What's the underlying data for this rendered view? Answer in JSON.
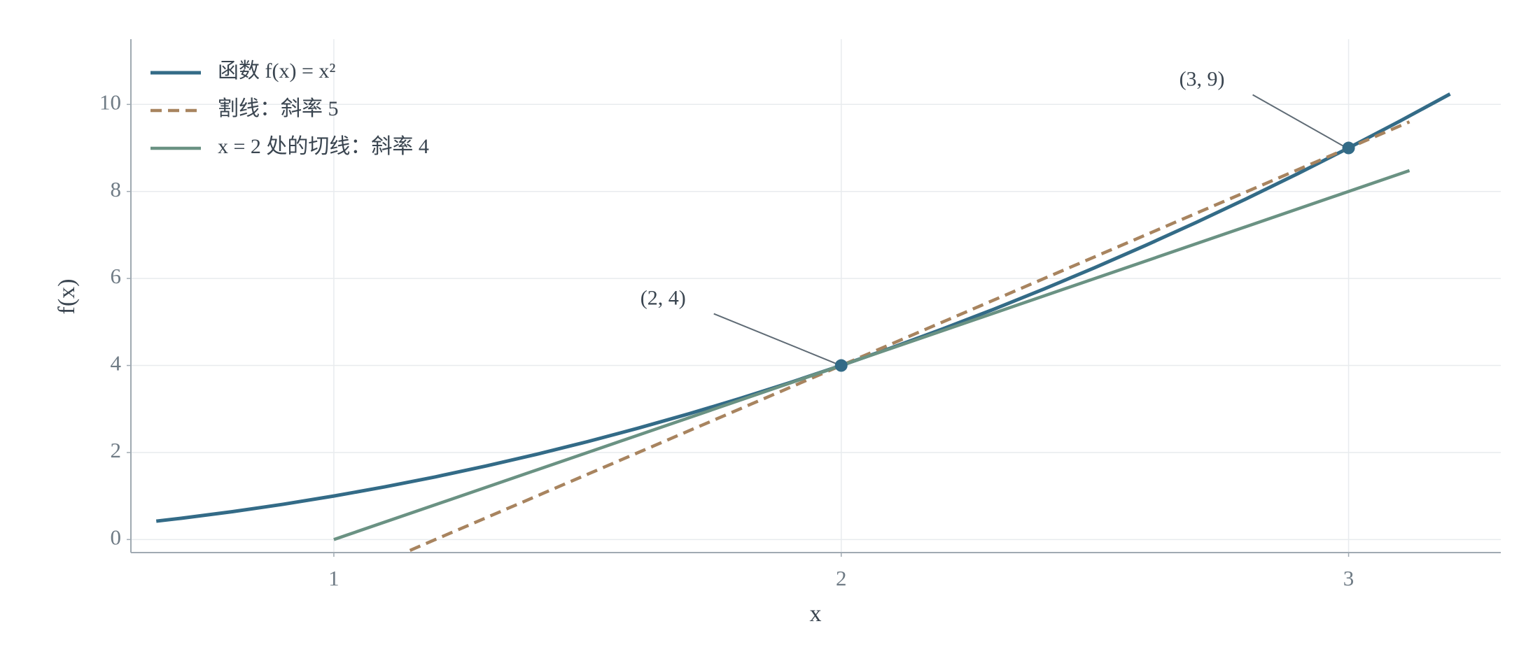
{
  "chart_data": {
    "type": "line",
    "xlabel": "x",
    "ylabel": "f(x)",
    "xlim": [
      0.6,
      3.3
    ],
    "ylim": [
      -0.3,
      11.5
    ],
    "xticks": [
      1,
      2,
      3
    ],
    "yticks": [
      0,
      2,
      4,
      6,
      8,
      10
    ],
    "grid": true,
    "legend": "upper left",
    "series": [
      {
        "name": "函数 f(x) = x²",
        "color": "#336b87",
        "linestyle": "solid",
        "x": [
          0.65,
          0.7,
          0.8,
          0.9,
          1.0,
          1.1,
          1.2,
          1.3,
          1.4,
          1.5,
          1.6,
          1.7,
          1.8,
          1.9,
          2.0,
          2.1,
          2.2,
          2.3,
          2.4,
          2.5,
          2.6,
          2.7,
          2.8,
          2.9,
          3.0,
          3.1,
          3.2
        ],
        "values": [
          0.4225,
          0.49,
          0.64,
          0.81,
          1,
          1.21,
          1.44,
          1.69,
          1.96,
          2.25,
          2.56,
          2.89,
          3.24,
          3.61,
          4,
          4.41,
          4.84,
          5.29,
          5.76,
          6.25,
          6.76,
          7.29,
          7.84,
          8.41,
          9,
          9.61,
          10.24
        ]
      },
      {
        "name": "割线：斜率 5",
        "color": "#a8845f",
        "linestyle": "dashed",
        "x": [
          1.15,
          3.12
        ],
        "values": [
          -0.25,
          9.6
        ]
      },
      {
        "name": "x = 2 处的切线：斜率 4",
        "color": "#6a9283",
        "linestyle": "solid",
        "x": [
          1.0,
          3.12
        ],
        "values": [
          0,
          8.48
        ]
      }
    ],
    "points": {
      "color": "#336b87",
      "x": [
        2,
        3
      ],
      "values": [
        4,
        9
      ]
    },
    "annotations": [
      {
        "text": "(2, 4)",
        "x": 2,
        "y": 4
      },
      {
        "text": "(3, 9)",
        "x": 3,
        "y": 9
      }
    ]
  }
}
